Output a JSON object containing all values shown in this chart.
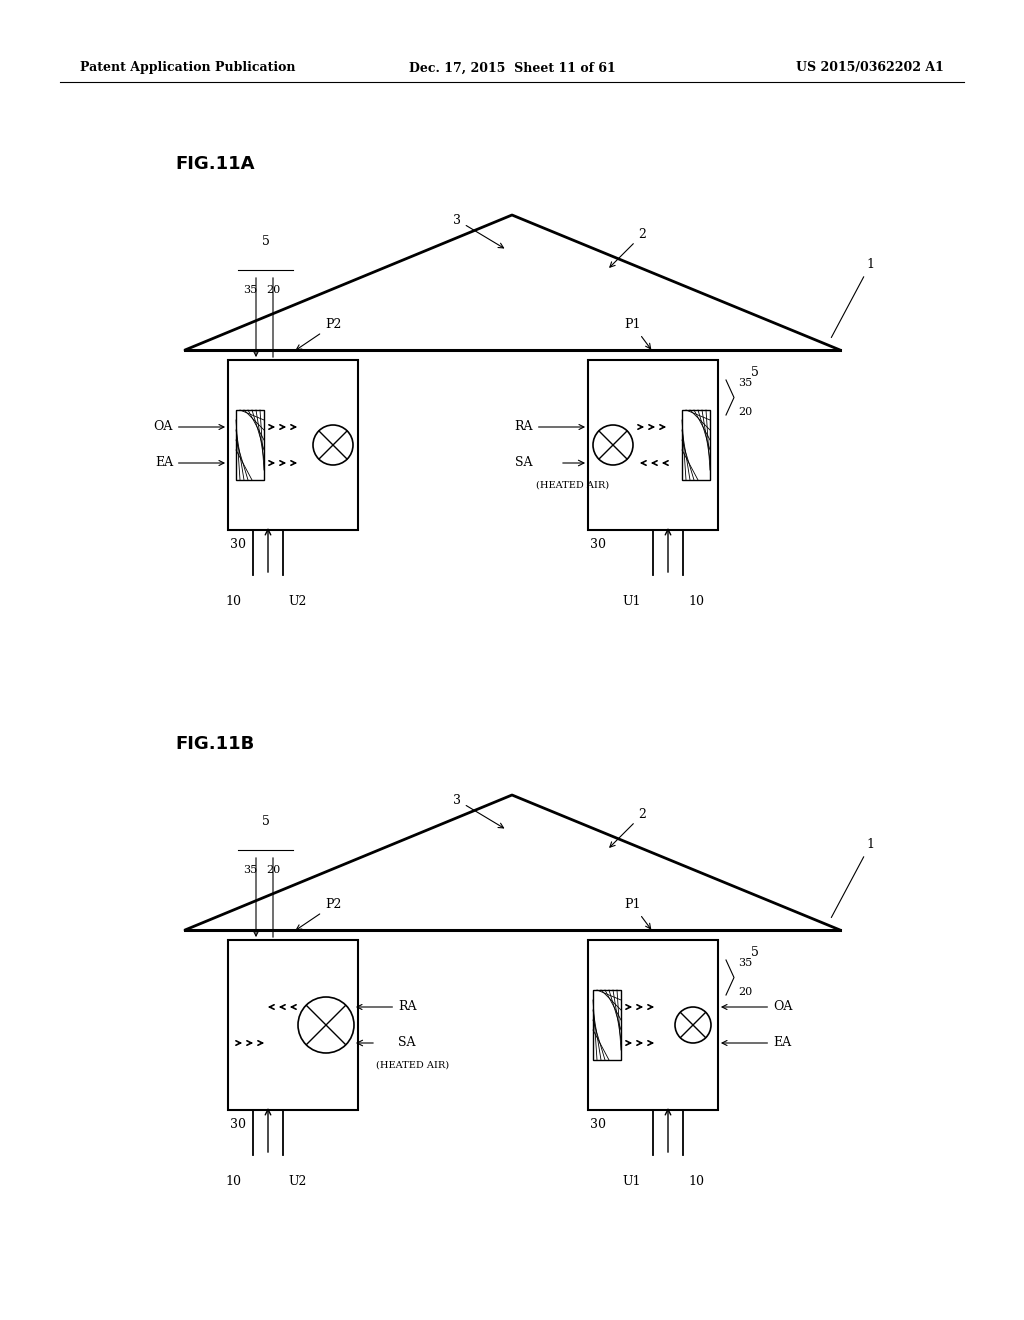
{
  "header_left": "Patent Application Publication",
  "header_mid": "Dec. 17, 2015  Sheet 11 of 61",
  "header_right": "US 2015/0362202 A1",
  "fig_label_A": "FIG.11A",
  "fig_label_B": "FIG.11B",
  "bg_color": "#ffffff",
  "line_color": "#000000"
}
